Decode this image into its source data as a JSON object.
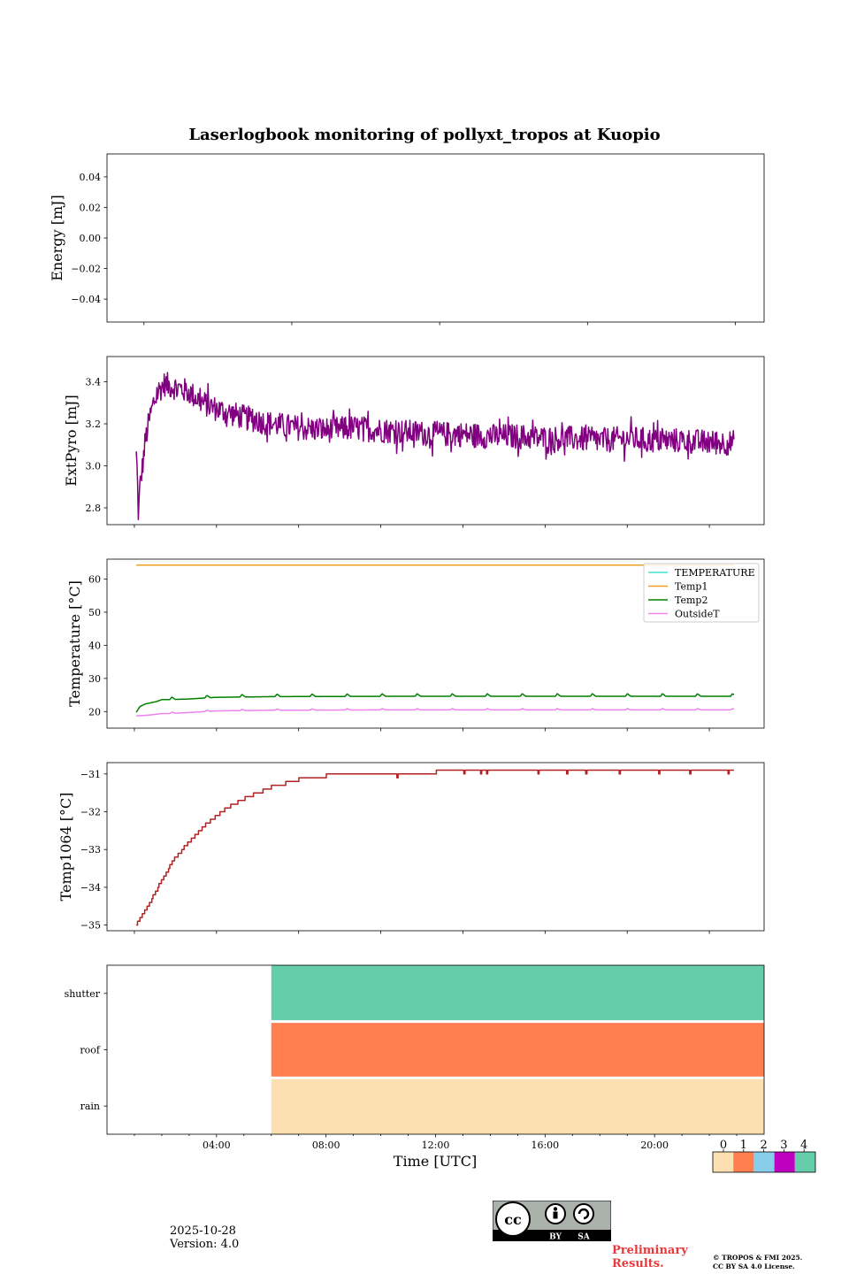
{
  "chart_data": {
    "type": "line",
    "title": "Laserlogbook monitoring of pollyxt_tropos at Kuopio",
    "xlabel": "Time [UTC]",
    "x_unit": "hours UTC",
    "xlim": [
      0,
      24
    ],
    "x_ticks": [
      4,
      8,
      12,
      16,
      20
    ],
    "x_tick_labels": [
      "04:00",
      "08:00",
      "12:00",
      "16:00",
      "20:00"
    ],
    "panels": [
      {
        "ylabel": "Energy [mJ]",
        "ylim": [
          -0.055,
          0.055
        ],
        "y_ticks": [
          0.04,
          0.02,
          0.0,
          -0.02,
          -0.04
        ],
        "y_tick_labels": [
          "0.04",
          "0.02",
          "0.00",
          "−0.02",
          "−0.04"
        ],
        "series": []
      },
      {
        "ylabel": "ExtPyro [mJ]",
        "ylim": [
          2.72,
          3.52
        ],
        "y_ticks": [
          3.4,
          3.2,
          3.0,
          2.8
        ],
        "y_tick_labels": [
          "3.4",
          "3.2",
          "3.0",
          "2.8"
        ],
        "series": [
          {
            "name": "ExtPyro",
            "color": "#800080",
            "x": [
              1.07,
              1.1,
              1.15,
              1.2,
              1.3,
              1.4,
              1.55,
              1.7,
              1.9,
              2.1,
              2.3,
              2.6,
              3.0,
              3.5,
              4.0,
              4.5,
              5.0,
              6.0,
              7.0,
              8.0,
              9.0,
              10.0,
              11.0,
              12.0,
              13.0,
              14.0,
              15.0,
              16.0,
              17.0,
              18.0,
              19.0,
              20.0,
              21.0,
              22.0,
              22.9
            ],
            "values": [
              3.05,
              2.98,
              2.75,
              2.9,
              3.0,
              3.12,
              3.22,
              3.3,
              3.36,
              3.39,
              3.38,
              3.37,
              3.35,
              3.3,
              3.27,
              3.25,
              3.23,
              3.2,
              3.18,
              3.17,
              3.18,
              3.17,
              3.16,
              3.15,
              3.15,
              3.14,
              3.14,
              3.13,
              3.13,
              3.12,
              3.13,
              3.12,
              3.12,
              3.11,
              3.11
            ],
            "noise_amplitude": 0.06
          }
        ]
      },
      {
        "ylabel": "Temperature [°C]",
        "ylim": [
          15,
          66
        ],
        "y_ticks": [
          60,
          50,
          40,
          30,
          20
        ],
        "y_tick_labels": [
          "60",
          "50",
          "40",
          "30",
          "20"
        ],
        "legend_position": "top-right",
        "series": [
          {
            "name": "TEMPERATURE",
            "color": "#40e0d0",
            "x": [],
            "values": []
          },
          {
            "name": "Temp1",
            "color": "#f0a020",
            "x": [
              1.07,
              22.9
            ],
            "values": [
              64.2,
              64.2
            ]
          },
          {
            "name": "Temp2",
            "color": "#008000",
            "x": [
              1.07,
              1.2,
              1.4,
              1.8,
              2.0,
              2.3,
              3.0,
              4.0,
              6.0,
              10.0,
              14.0,
              18.0,
              22.9
            ],
            "values": [
              19.8,
              21.5,
              22.3,
              23.0,
              23.6,
              23.6,
              23.8,
              24.3,
              24.5,
              24.6,
              24.6,
              24.6,
              24.6
            ],
            "spike_every_hours": 1.28,
            "spike_height": 0.8
          },
          {
            "name": "OutsideT",
            "color": "#ee82ee",
            "x": [
              1.07,
              1.5,
              2.0,
              2.3,
              3.0,
              4.0,
              6.0,
              10.0,
              14.0,
              18.0,
              22.9
            ],
            "values": [
              18.7,
              18.9,
              19.4,
              19.4,
              19.7,
              20.2,
              20.4,
              20.5,
              20.5,
              20.5,
              20.5
            ],
            "spike_every_hours": 1.28,
            "spike_height": 0.4
          }
        ]
      },
      {
        "ylabel": "Temp1064 [°C]",
        "ylim": [
          -35.15,
          -30.7
        ],
        "y_ticks": [
          -31,
          -32,
          -33,
          -34,
          -35
        ],
        "y_tick_labels": [
          "−31",
          "−32",
          "−33",
          "−34",
          "−35"
        ],
        "series": [
          {
            "name": "Temp1064",
            "color": "#b22222",
            "x": [
              1.07,
              1.5,
              2.0,
              2.5,
              3.0,
              3.5,
              4.0,
              4.5,
              5.0,
              5.5,
              6.0,
              6.5,
              7.0,
              7.5,
              8.0,
              9.0,
              10.0,
              11.0,
              12.0,
              14.0,
              16.0,
              18.0,
              20.0,
              22.9
            ],
            "values": [
              -35.0,
              -34.5,
              -33.8,
              -33.2,
              -32.8,
              -32.4,
              -32.1,
              -31.85,
              -31.65,
              -31.5,
              -31.35,
              -31.25,
              -31.15,
              -31.1,
              -31.05,
              -31.0,
              -31.0,
              -31.0,
              -30.95,
              -30.95,
              -30.9,
              -30.9,
              -30.9,
              -30.9
            ],
            "step": 0.1
          }
        ]
      },
      {
        "type": "status",
        "rows": [
          "shutter",
          "roof",
          "rain"
        ],
        "start_hour": 6.0,
        "end_hour": 24.0,
        "row_colors": {
          "shutter": "#66cdaa",
          "roof": "#ff7f50",
          "rain": "#fde0b2"
        }
      }
    ],
    "colorbar": {
      "labels": [
        "0",
        "1",
        "2",
        "3",
        "4"
      ],
      "colors": [
        "#fde0b2",
        "#ff7f50",
        "#87ceeb",
        "#c000c0",
        "#66cdaa"
      ]
    }
  },
  "footer": {
    "date": "2025-10-28",
    "version": "Version: 4.0",
    "preliminary": "Preliminary Results.",
    "copyright_line1": "© TROPOS & FMI 2025.",
    "copyright_line2": "CC BY SA 4.0 License.",
    "cc_badge": {
      "by": "BY",
      "sa": "SA",
      "logo": "cc"
    }
  }
}
